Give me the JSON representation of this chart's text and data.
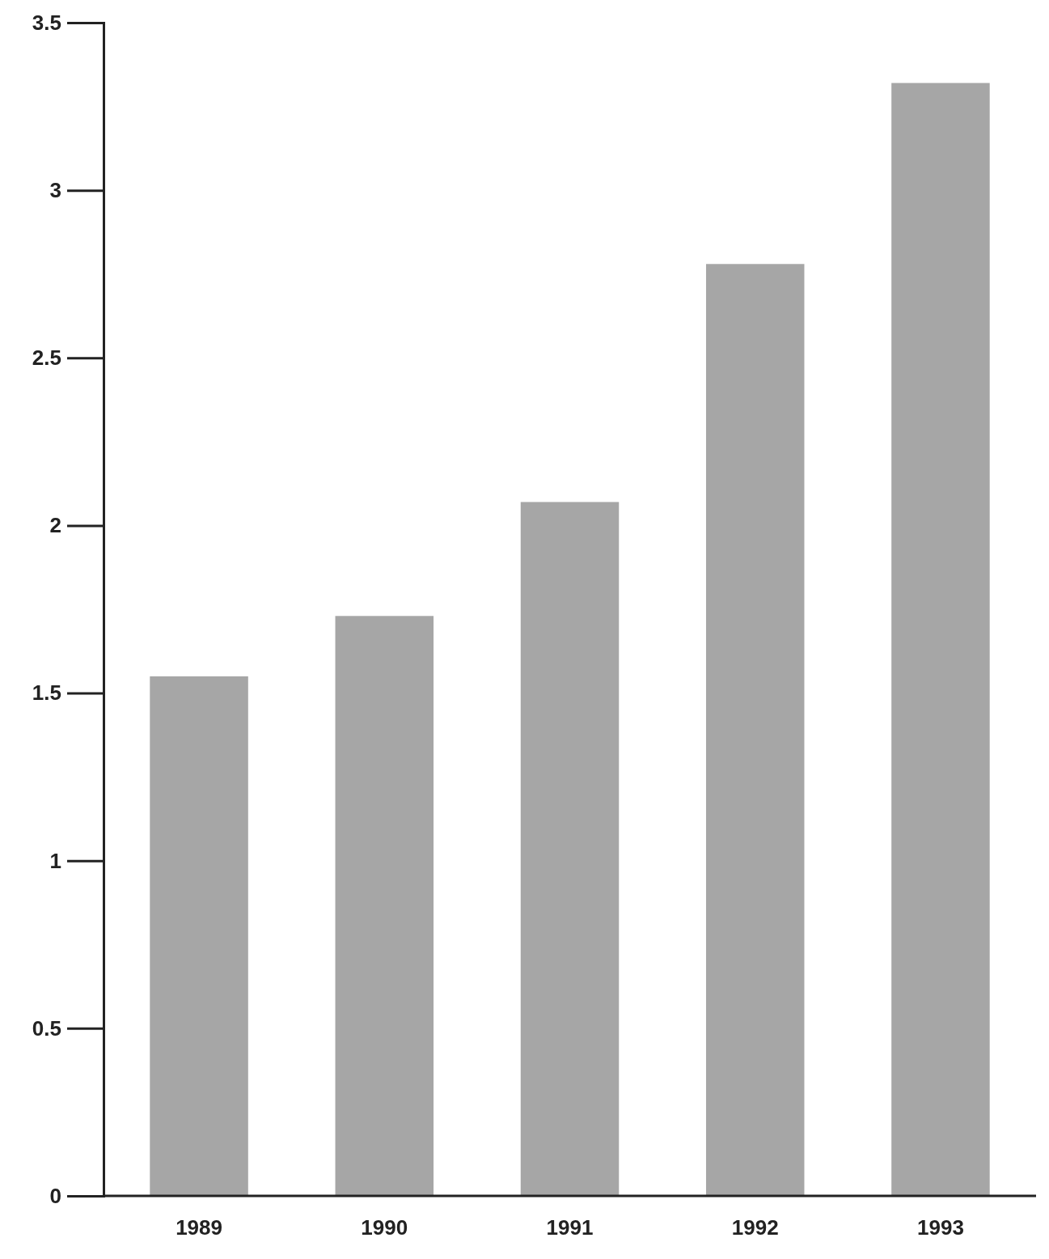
{
  "chart_data": {
    "type": "bar",
    "categories": [
      "1989",
      "1990",
      "1991",
      "1992",
      "1993"
    ],
    "values": [
      1.55,
      1.73,
      2.07,
      2.78,
      3.32
    ],
    "color": "#a6a6a6",
    "ylim": [
      0,
      3.5
    ],
    "yticks": [
      0,
      0.5,
      1,
      1.5,
      2,
      2.5,
      3,
      3.5
    ],
    "grid": false
  }
}
